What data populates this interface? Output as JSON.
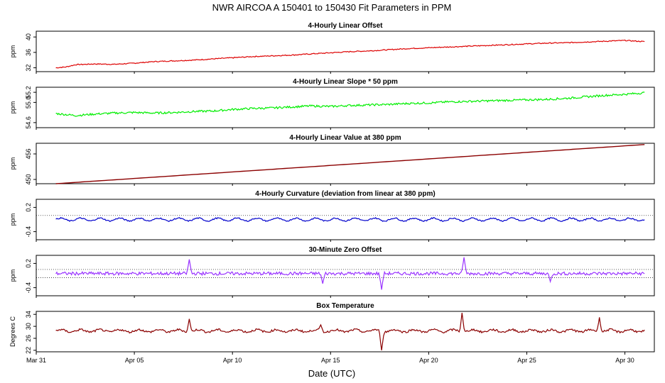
{
  "figure": {
    "title": "NWR   AIRCOA A   150401 to 150430   Fit Parameters in PPM",
    "xlabel": "Date (UTC)"
  },
  "chart_data": [
    {
      "type": "line",
      "title": "4-Hourly Linear Offset",
      "ylabel": "ppm",
      "color": "#dd0000",
      "xlim": [
        0,
        31.5
      ],
      "ylim": [
        31,
        41.5
      ],
      "yticks": [
        32,
        36,
        40
      ],
      "ytick_labels": [
        "32",
        "36",
        "40"
      ],
      "series": [
        {
          "name": "Linear Offset",
          "x": [
            1,
            1.5,
            2,
            3,
            4,
            5,
            6,
            7,
            8,
            9,
            10,
            11,
            12,
            13,
            14,
            15,
            16,
            17,
            18,
            19,
            20,
            21,
            22,
            23,
            24,
            25,
            26,
            27,
            28,
            29,
            30,
            31
          ],
          "values": [
            32.0,
            32.2,
            32.8,
            33.0,
            32.9,
            33.2,
            33.6,
            33.8,
            34.0,
            34.3,
            34.6,
            34.9,
            35.1,
            35.3,
            35.6,
            35.9,
            36.2,
            36.4,
            36.7,
            37.0,
            37.2,
            37.4,
            37.6,
            37.8,
            38.0,
            38.2,
            38.4,
            38.5,
            38.7,
            38.9,
            39.1,
            38.8
          ]
        }
      ]
    },
    {
      "type": "line",
      "title": "4-Hourly Linear Slope * 50 ppm",
      "ylabel": "ppm",
      "color": "#00ee00",
      "xlim": [
        0,
        31.5
      ],
      "ylim": [
        54.5,
        55.3
      ],
      "yticks": [
        54.6,
        55.0,
        55.2
      ],
      "ytick_labels": [
        "54.6",
        "55.0",
        "55.2"
      ],
      "series": [
        {
          "name": "Linear Slope",
          "x": [
            1,
            2,
            3,
            4,
            5,
            6,
            7,
            8,
            9,
            10,
            11,
            12,
            13,
            14,
            15,
            16,
            17,
            18,
            19,
            20,
            21,
            22,
            23,
            24,
            25,
            26,
            27,
            28,
            29,
            30,
            31
          ],
          "values": [
            54.78,
            54.74,
            54.77,
            54.79,
            54.8,
            54.79,
            54.8,
            54.82,
            54.83,
            54.86,
            54.88,
            54.89,
            54.91,
            54.93,
            54.92,
            54.94,
            54.95,
            54.96,
            54.98,
            54.99,
            55.01,
            55.02,
            55.03,
            55.04,
            55.05,
            55.06,
            55.08,
            55.11,
            55.14,
            55.16,
            55.19
          ]
        }
      ]
    },
    {
      "type": "line",
      "title": "4-Hourly Linear Value at 380 ppm",
      "ylabel": "ppm",
      "color": "#8b0000",
      "xlim": [
        0,
        31.5
      ],
      "ylim": [
        449,
        458.5
      ],
      "yticks": [
        450,
        456
      ],
      "ytick_labels": [
        "450",
        "456"
      ],
      "series": [
        {
          "name": "Linear Value",
          "x": [
            1,
            31
          ],
          "values": [
            449.0,
            458.2
          ]
        }
      ]
    },
    {
      "type": "line",
      "title": "4-Hourly Curvature (deviation from linear at 380 ppm)",
      "ylabel": "ppm",
      "color": "#0000cc",
      "xlim": [
        0,
        31.5
      ],
      "ylim": [
        -0.6,
        0.4
      ],
      "yticks": [
        -0.4,
        0.2
      ],
      "ytick_labels": [
        "-0.4",
        "0.2"
      ],
      "reference_lines": [
        0
      ],
      "series": [
        {
          "name": "Curvature",
          "x": [
            1,
            31
          ],
          "values": [
            -0.1,
            -0.1
          ]
        }
      ]
    },
    {
      "type": "line",
      "title": "30-Minute Zero Offset",
      "ylabel": "ppm",
      "color": "#9933ff",
      "xlim": [
        0,
        31.5
      ],
      "ylim": [
        -0.6,
        0.4
      ],
      "yticks": [
        -0.4,
        0.2
      ],
      "ytick_labels": [
        "-0.4",
        "0.2"
      ],
      "reference_lines": [
        0.05,
        -0.15
      ],
      "spikes": [
        {
          "x": 7.8,
          "value": 0.3
        },
        {
          "x": 14.6,
          "value": -0.3
        },
        {
          "x": 17.6,
          "value": -0.45
        },
        {
          "x": 21.8,
          "value": 0.35
        },
        {
          "x": 26.2,
          "value": -0.25
        }
      ],
      "series": [
        {
          "name": "Zero Offset",
          "x": [
            1,
            31
          ],
          "values": [
            -0.05,
            -0.05
          ]
        }
      ]
    },
    {
      "type": "line",
      "title": "Box Temperature",
      "ylabel": "Degrees C",
      "color": "#8b0000",
      "xlim": [
        0,
        31.5
      ],
      "ylim": [
        21.5,
        35
      ],
      "yticks": [
        22,
        26,
        30,
        34
      ],
      "ytick_labels": [
        "22",
        "26",
        "30",
        "34"
      ],
      "spikes": [
        {
          "x": 7.8,
          "value": 32.5
        },
        {
          "x": 14.5,
          "value": 30.5
        },
        {
          "x": 17.6,
          "value": 22.0
        },
        {
          "x": 21.7,
          "value": 34.5
        },
        {
          "x": 28.7,
          "value": 33.0
        }
      ],
      "series": [
        {
          "name": "Box Temperature",
          "x": [
            1,
            31
          ],
          "values": [
            28.5,
            28.5
          ]
        }
      ]
    }
  ],
  "x_axis": {
    "ticks": [
      0,
      5,
      10,
      15,
      20,
      25,
      30
    ],
    "labels": [
      "Mar 31",
      "Apr 05",
      "Apr 10",
      "Apr 15",
      "Apr 20",
      "Apr 25",
      "Apr 30"
    ]
  }
}
